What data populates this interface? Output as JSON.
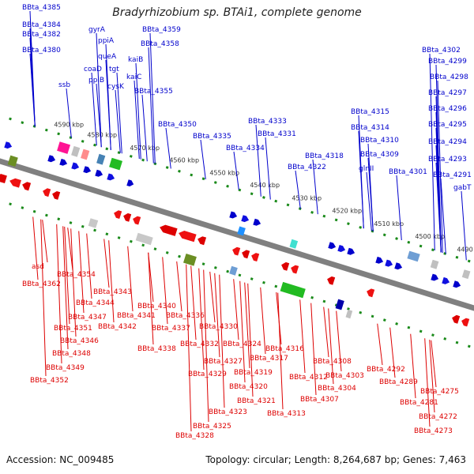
{
  "title": "Bradyrhizobium sp. BTAi1, complete genome",
  "footer": {
    "accession": "Accession: NC_009485",
    "topology": "Topology: circular; Length: 8,264,687 bp; Genes: 7,463"
  },
  "colors": {
    "forward": "#0000cc",
    "reverse": "#dd0000",
    "backbone": "#808080",
    "tick": "#1a8a1a"
  },
  "kbp_ticks": [
    "4590 kbp",
    "4580 kbp",
    "4570 kbp",
    "4560 kbp",
    "4550 kbp",
    "4540 kbp",
    "4530 kbp",
    "4520 kbp",
    "4510 kbp",
    "4500 kbp",
    "4490 kbp"
  ],
  "forward_labels": [
    "BBta_4385",
    "BBta_4384",
    "BBta_4382",
    "BBta_4380",
    "gyrA",
    "ppiA",
    "queA",
    "coaD",
    "tgt",
    "ppiB",
    "cysK",
    "kaiC",
    "kaiB",
    "BBta_4359",
    "BBta_4358",
    "BBta_4355",
    "ssb",
    "BBta_4350",
    "BBta_4335",
    "BBta_4334",
    "BBta_4333",
    "BBta_4331",
    "BBta_4322",
    "BBta_4318",
    "BBta_4315",
    "BBta_4314",
    "BBta_4310",
    "BBta_4309",
    "glnII",
    "BBta_4301",
    "BBta_4302",
    "BBta_4299",
    "BBta_4298",
    "BBta_4297",
    "BBta_4296",
    "BBta_4295",
    "BBta_4294",
    "BBta_4293",
    "BBta_4291",
    "gabT"
  ],
  "reverse_labels": [
    "asd",
    "BBta_4362",
    "BBta_4354",
    "BBta_4351",
    "BBta_4347",
    "BBta_4346",
    "BBta_4348",
    "BBta_4349",
    "BBta_4352",
    "BBta_4344",
    "BBta_4343",
    "BBta_4342",
    "BBta_4341",
    "BBta_4340",
    "BBta_4338",
    "BBta_4337",
    "BBta_4336",
    "BBta_4332",
    "BBta_4330",
    "BBta_4329",
    "BBta_4328",
    "BBta_4327",
    "BBta_4325",
    "BBta_4324",
    "BBta_4323",
    "BBta_4321",
    "BBta_4320",
    "BBta_4319",
    "BBta_4317",
    "BBta_4316",
    "BBta_4313",
    "BBta_4312",
    "BBta_4308",
    "BBta_4307",
    "BBta_4304",
    "BBta_4303",
    "BBta_4292",
    "BBta_4289",
    "BBta_4281",
    "BBta_4275",
    "BBta_4273",
    "BBta_4272"
  ]
}
